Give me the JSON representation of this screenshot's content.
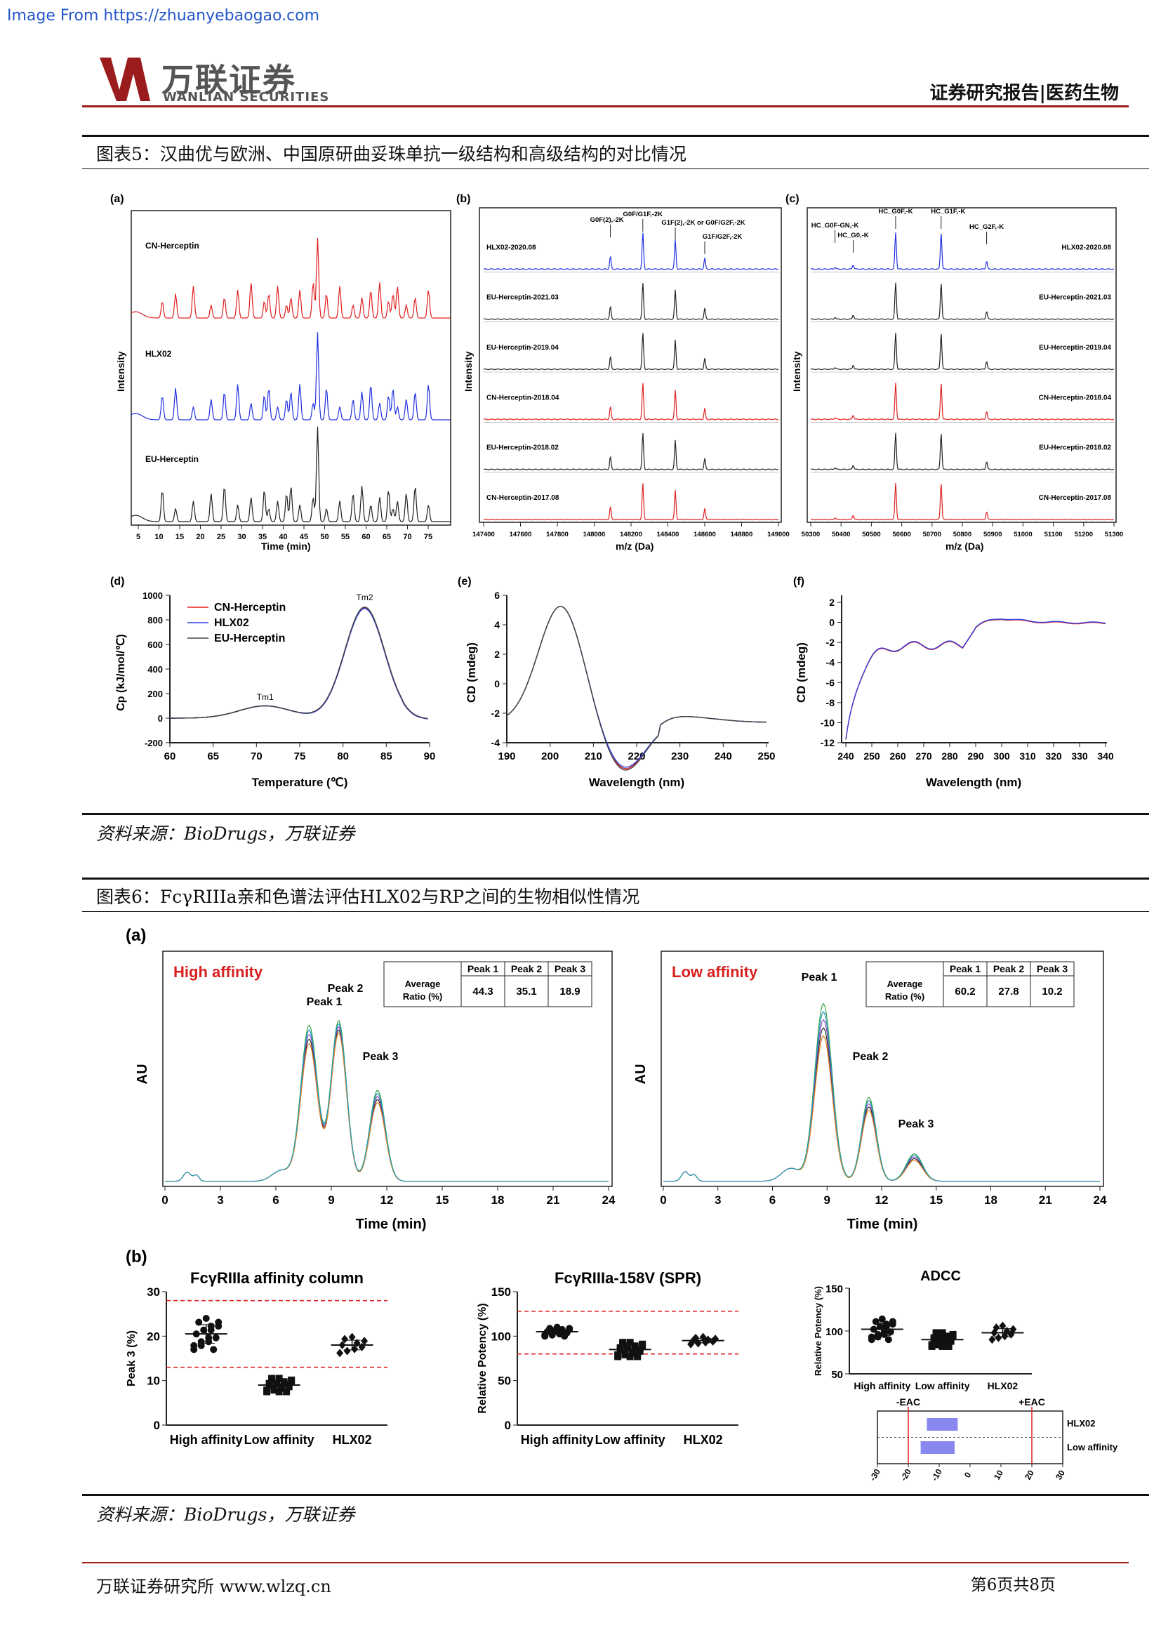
{
  "source_note": "Image From https://zhuanyebaogao.com",
  "header": {
    "logo_cn": "万联证券",
    "logo_en": "WANLIAN SECURITIES",
    "right": "证券研究报告|医药生物"
  },
  "fig5": {
    "title": "图表5：汉曲优与欧洲、中国原研曲妥珠单抗一级结构和高级结构的对比情况",
    "source": "资料来源：BioDrugs，万联证券",
    "a": {
      "tag": "(a)",
      "ylabel": "Intensity",
      "xlabel": "Time (min)",
      "ticks": [
        "5",
        "10",
        "15",
        "20",
        "25",
        "30",
        "35",
        "40",
        "45",
        "50",
        "55",
        "60",
        "65",
        "70",
        "75"
      ],
      "labels": [
        "CN-Herceptin",
        "HLX02",
        "EU-Herceptin"
      ]
    },
    "b": {
      "tag": "(b)",
      "ylabel": "Intensity",
      "xlabel": "m/z (Da)",
      "ticks": [
        "147400",
        "147600",
        "147800",
        "148000",
        "148200",
        "148400",
        "148600",
        "148800",
        "149000"
      ],
      "peaks": [
        "G0F(2),-2K",
        "G0F/G1F,-2K",
        "G1F(2),-2K or G0F/G2F,-2K",
        "G1F/G2F,-2K"
      ],
      "traces": [
        "HLX02-2020.08",
        "EU-Herceptin-2021.03",
        "EU-Herceptin-2019.04",
        "CN-Herceptin-2018.04",
        "EU-Herceptin-2018.02",
        "CN-Herceptin-2017.08"
      ]
    },
    "c": {
      "tag": "(c)",
      "ylabel": "Intensity",
      "xlabel": "m/z (Da)",
      "ticks": [
        "50300",
        "50400",
        "50500",
        "50600",
        "50700",
        "50800",
        "50900",
        "51000",
        "51100",
        "51200",
        "51300"
      ],
      "peaks": [
        "HC_G0F-GN,-K",
        "HC_G0,-K",
        "HC_G0F,-K",
        "HC_G1F,-K",
        "HC_G2F,-K"
      ],
      "traces": [
        "HLX02-2020.08",
        "EU-Herceptin-2021.03",
        "EU-Herceptin-2019.04",
        "CN-Herceptin-2018.04",
        "EU-Herceptin-2018.02",
        "CN-Herceptin-2017.08"
      ]
    },
    "d": {
      "tag": "(d)",
      "ylabel": "Cp (kJ/mol/℃)",
      "xlabel": "Temperature (℃)",
      "xticks": [
        "60",
        "65",
        "70",
        "75",
        "80",
        "85",
        "90"
      ],
      "yticks": [
        "1000",
        "800",
        "600",
        "400",
        "200",
        "0",
        "-200"
      ],
      "legend": [
        "CN-Herceptin",
        "HLX02",
        "EU-Herceptin"
      ],
      "tm1": "Tm1",
      "tm2": "Tm2"
    },
    "e": {
      "tag": "(e)",
      "ylabel": "CD (mdeg)",
      "xlabel": "Wavelength (nm)",
      "xticks": [
        "190",
        "200",
        "210",
        "220",
        "230",
        "240",
        "250"
      ],
      "yticks": [
        "6",
        "4",
        "2",
        "0",
        "-2",
        "-4"
      ]
    },
    "f": {
      "tag": "(f)",
      "ylabel": "CD (mdeg)",
      "xlabel": "Wavelength (nm)",
      "xticks": [
        "240",
        "250",
        "260",
        "270",
        "280",
        "290",
        "300",
        "310",
        "320",
        "330",
        "340"
      ],
      "yticks": [
        "2",
        "0",
        "-2",
        "-4",
        "-6",
        "-8",
        "-10",
        "-12"
      ]
    }
  },
  "fig6": {
    "title": "图表6：FcγRIIIa亲和色谱法评估HLX02与RP之间的生物相似性情况",
    "source": "资料来源：BioDrugs，万联证券",
    "a_tag": "(a)",
    "b_tag": "(b)",
    "high": {
      "label": "High affinity",
      "table_head": [
        "Peak 1",
        "Peak 2",
        "Peak 3"
      ],
      "row_label": "Average Ratio (%)",
      "values": [
        "44.3",
        "35.1",
        "18.9"
      ],
      "peaks": [
        "Peak 1",
        "Peak 2",
        "Peak 3"
      ]
    },
    "low": {
      "label": "Low affinity",
      "table_head": [
        "Peak 1",
        "Peak 2",
        "Peak 3"
      ],
      "row_label": "Average Ratio (%)",
      "values": [
        "60.2",
        "27.8",
        "10.2"
      ],
      "peaks": [
        "Peak 1",
        "Peak 2",
        "Peak 3"
      ]
    },
    "ylabel": "AU",
    "xlabel": "Time (min)",
    "xticks": [
      "0",
      "3",
      "6",
      "9",
      "12",
      "15",
      "18",
      "21",
      "24"
    ],
    "b1": {
      "title": "FcγRIIIa affinity column",
      "ylabel": "Peak 3 (%)",
      "yticks": [
        "30",
        "20",
        "10",
        "0"
      ],
      "groups": [
        "High affinity",
        "Low affinity",
        "HLX02"
      ]
    },
    "b2": {
      "title": "FcγRIIIa-158V (SPR)",
      "ylabel": "Relative Potency (%)",
      "yticks": [
        "150",
        "100",
        "50",
        "0"
      ],
      "groups": [
        "High affinity",
        "Low affinity",
        "HLX02"
      ]
    },
    "b3": {
      "title": "ADCC",
      "ylabel": "Relative Potency (%)",
      "yticks": [
        "150",
        "100",
        "50"
      ],
      "groups": [
        "High affinity",
        "Low affinity",
        "HLX02"
      ],
      "eac_neg": "-EAC",
      "eac_pos": "+EAC",
      "bar_labels": [
        "HLX02",
        "Low affinity"
      ],
      "xticks": [
        "-30",
        "-20",
        "-10",
        "0",
        "10",
        "20",
        "30"
      ]
    }
  },
  "footer": {
    "left": "万联证券研究所 www.wlzq.cn",
    "right": "第6页共8页"
  }
}
